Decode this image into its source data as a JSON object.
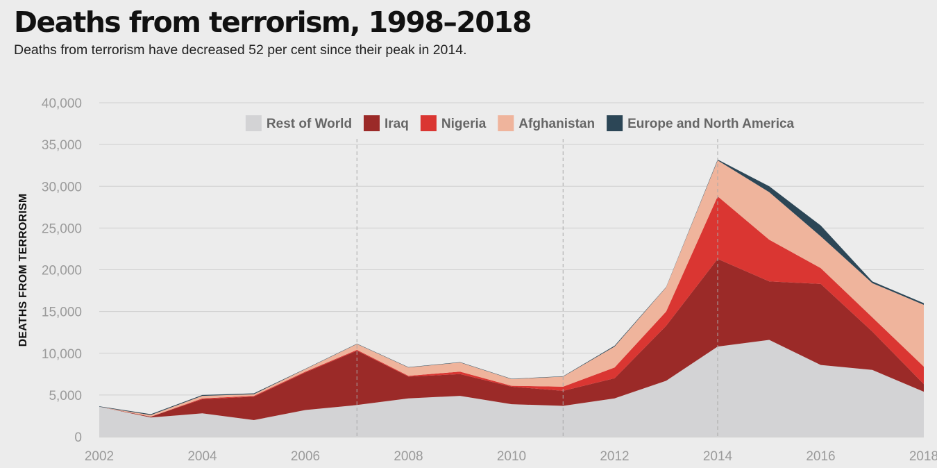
{
  "header": {
    "title": "Deaths from terrorism, 1998–2018",
    "subtitle": "Deaths from terrorism have decreased 52 per cent since their peak in 2014."
  },
  "chart_data": {
    "type": "area",
    "stacked": true,
    "title": "Deaths from terrorism, 1998–2018",
    "subtitle": "Deaths from terrorism have decreased 52 per cent since their peak in 2014.",
    "xlabel": "",
    "ylabel": "DEATHS FROM TERRORISM",
    "x": [
      2002,
      2003,
      2004,
      2005,
      2006,
      2007,
      2008,
      2009,
      2010,
      2011,
      2012,
      2013,
      2014,
      2015,
      2016,
      2017,
      2018
    ],
    "xlim": [
      2002,
      2018
    ],
    "ylim": [
      0,
      40000
    ],
    "x_ticks": [
      "2002",
      "2004",
      "2006",
      "2008",
      "2010",
      "2012",
      "2014",
      "2016",
      "2018"
    ],
    "y_ticks": [
      "0",
      "5,000",
      "10,000",
      "15,000",
      "20,000",
      "25,000",
      "30,000",
      "35,000",
      "40,000"
    ],
    "vertical_reference_lines": [
      2007,
      2011,
      2014
    ],
    "grid": "horizontal",
    "legend_position": "top",
    "series": [
      {
        "name": "Rest of World",
        "color": "#d3d3d5",
        "values": [
          3600,
          2300,
          2800,
          2000,
          3200,
          3800,
          4600,
          4900,
          3900,
          3700,
          4600,
          6700,
          10800,
          11600,
          8600,
          8000,
          5400
        ]
      },
      {
        "name": "Iraq",
        "color": "#9b2a28",
        "values": [
          0,
          100,
          1700,
          2800,
          4500,
          6500,
          2600,
          2600,
          2100,
          1800,
          2400,
          6600,
          10500,
          7000,
          9700,
          4600,
          900
        ]
      },
      {
        "name": "Nigeria",
        "color": "#da3632",
        "values": [
          0,
          0,
          100,
          100,
          100,
          100,
          100,
          300,
          100,
          500,
          1300,
          1700,
          7500,
          5000,
          1900,
          1700,
          2100
        ]
      },
      {
        "name": "Afghanistan",
        "color": "#efb49c",
        "values": [
          0,
          200,
          300,
          200,
          300,
          700,
          1000,
          1100,
          800,
          1200,
          2500,
          2900,
          4300,
          5700,
          3800,
          4100,
          7400
        ]
      },
      {
        "name": "Europe and North America",
        "color": "#2c4656",
        "values": [
          50,
          100,
          100,
          100,
          40,
          40,
          40,
          40,
          40,
          40,
          100,
          40,
          100,
          700,
          1300,
          200,
          200
        ]
      }
    ]
  }
}
